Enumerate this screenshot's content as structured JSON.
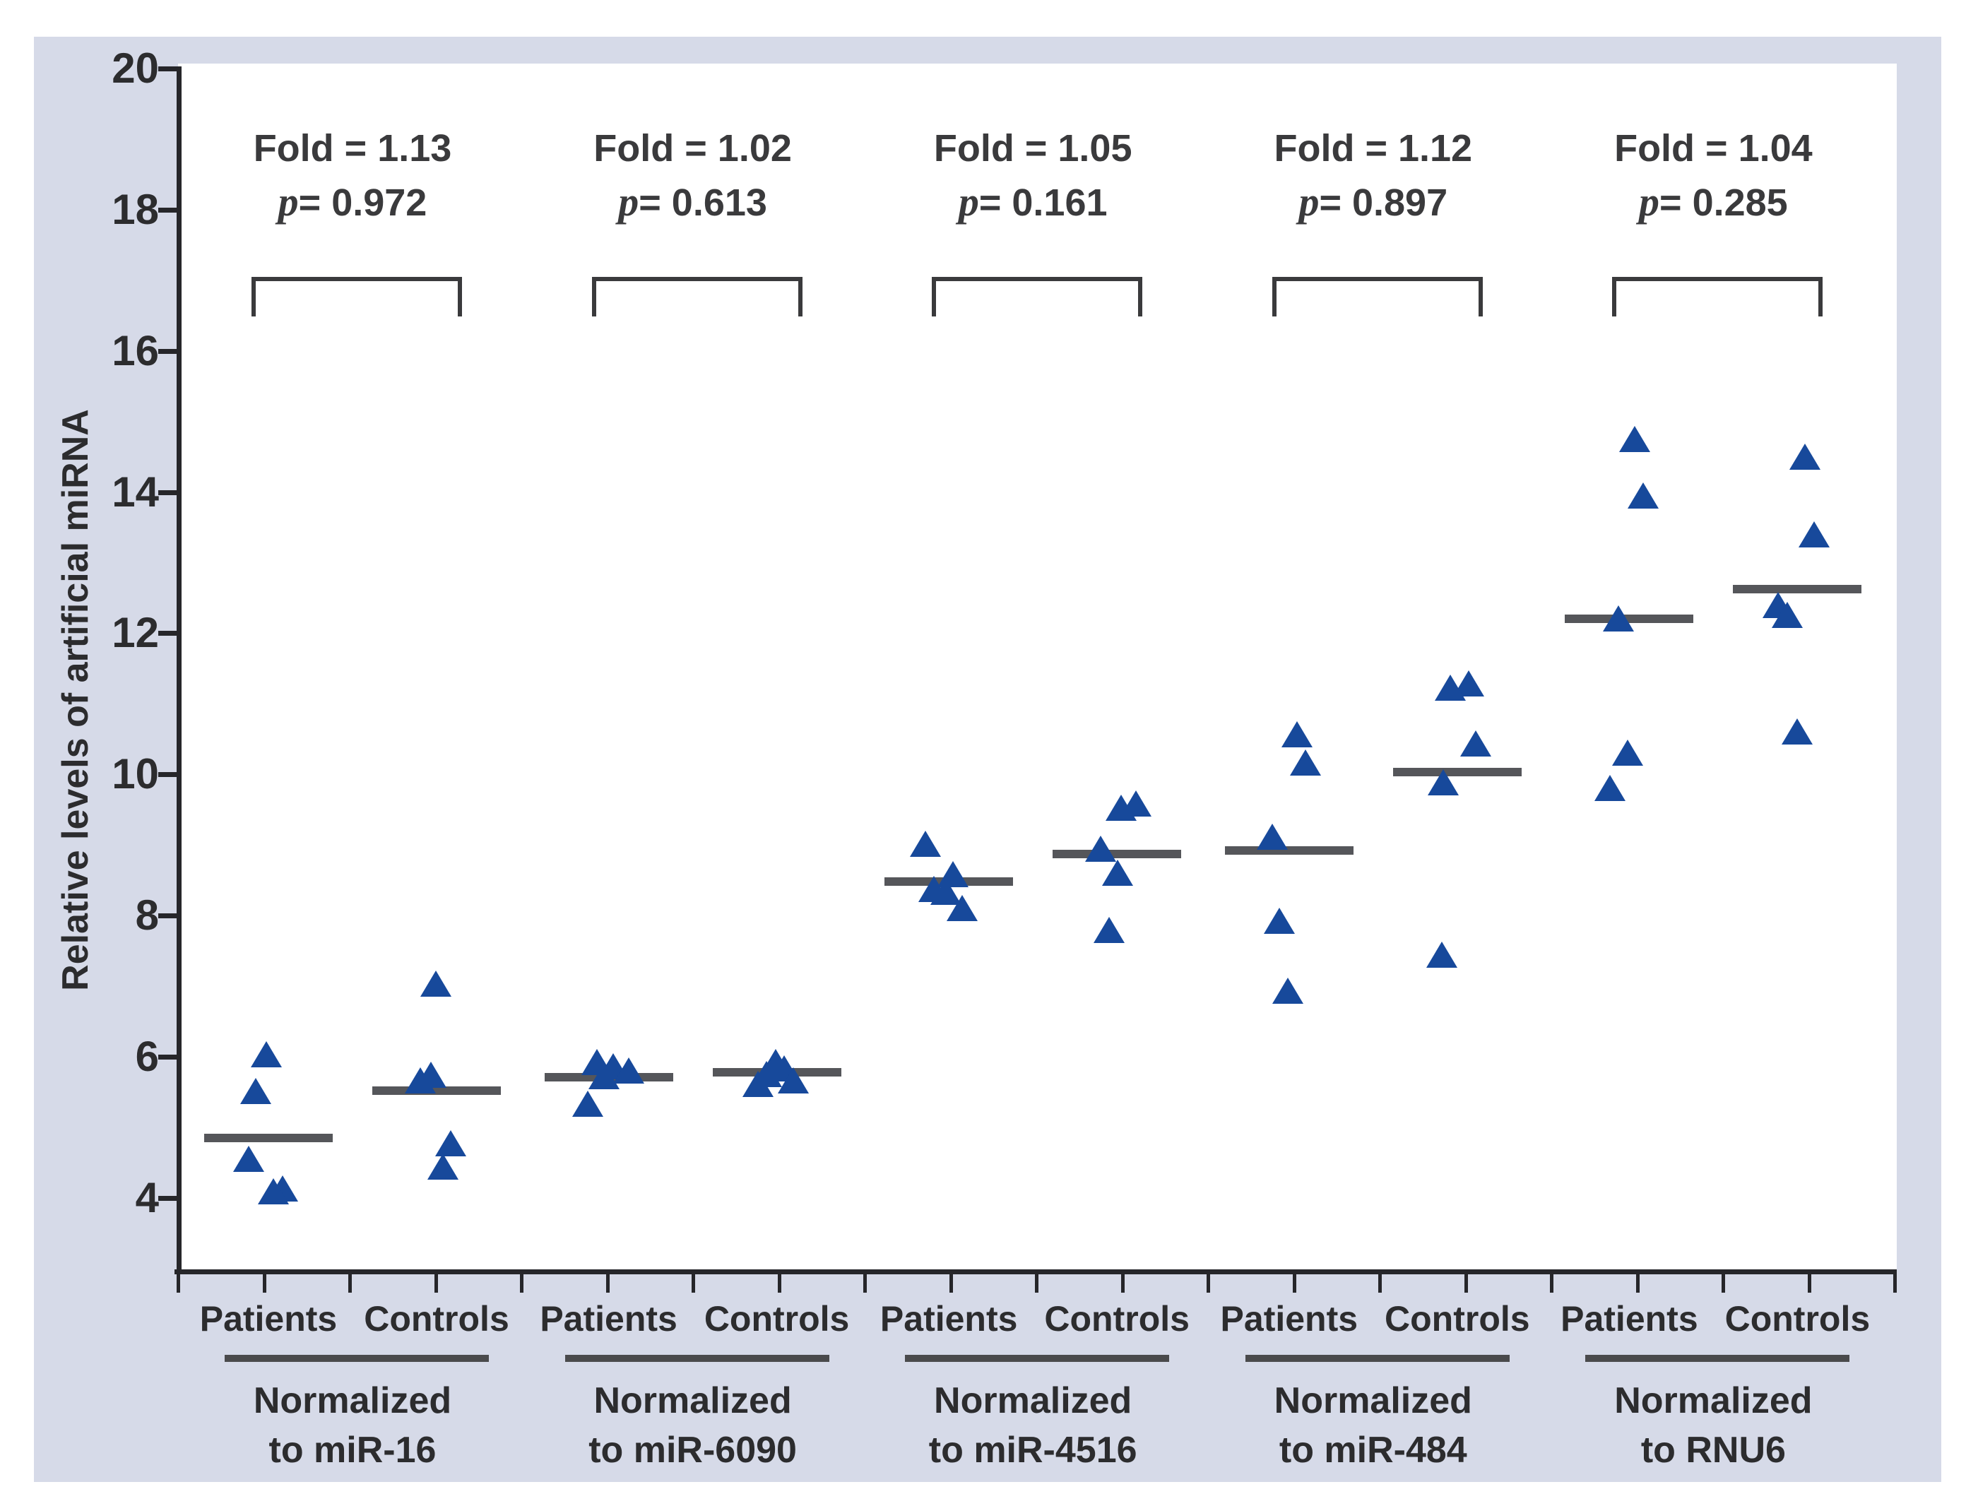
{
  "chart_data": {
    "type": "scatter",
    "title": "",
    "ylabel": "Relative levels of artificial miRNA",
    "xlabel": "",
    "ylim": [
      3,
      20
    ],
    "yticks": [
      4,
      6,
      8,
      10,
      12,
      14,
      16,
      18,
      20
    ],
    "grid": false,
    "legend": "none",
    "marker": "triangle-up",
    "marker_color": "#17499b",
    "mean_line_color": "#55565a",
    "series_labels": [
      "Patients",
      "Controls"
    ],
    "groups": [
      {
        "normalizer": "miR-16",
        "caption_line1": "Normalized",
        "caption_line2": "to miR-16",
        "fold_label": "Fold = 1.13",
        "p_char": "p",
        "p_rest": "= 0.972",
        "series": [
          {
            "label": "Patients",
            "mean": 4.85,
            "values": [
              6.03,
              5.51,
              4.55,
              4.13,
              4.09
            ],
            "jitter": [
              -3,
              -18,
              -28,
              20,
              7
            ]
          },
          {
            "label": "Controls",
            "mean": 5.52,
            "values": [
              7.03,
              5.74,
              5.66,
              4.77,
              4.44
            ],
            "jitter": [
              -1,
              -8,
              -23,
              20,
              9
            ]
          }
        ]
      },
      {
        "normalizer": "miR-6090",
        "caption_line1": "Normalized",
        "caption_line2": "to miR-6090",
        "fold_label": "Fold = 1.02",
        "p_char": "p",
        "p_rest": "= 0.613",
        "series": [
          {
            "label": "Patients",
            "mean": 5.71,
            "values": [
              5.92,
              5.86,
              5.8,
              5.72,
              5.33
            ],
            "jitter": [
              -17,
              6,
              28,
              -7,
              -30
            ]
          },
          {
            "label": "Controls",
            "mean": 5.78,
            "values": [
              5.92,
              5.83,
              5.75,
              5.66,
              5.61
            ],
            "jitter": [
              -2,
              10,
              -15,
              23,
              -27
            ]
          }
        ]
      },
      {
        "normalizer": "miR-4516",
        "caption_line1": "Normalized",
        "caption_line2": "to miR-4516",
        "fold_label": "Fold = 1.05",
        "p_char": "p",
        "p_rest": "= 0.161",
        "series": [
          {
            "label": "Patients",
            "mean": 8.48,
            "values": [
              9.01,
              8.58,
              8.37,
              8.33,
              8.1
            ],
            "jitter": [
              -33,
              6,
              -21,
              -4,
              19
            ]
          },
          {
            "label": "Controls",
            "mean": 8.87,
            "values": [
              9.58,
              9.52,
              8.94,
              8.6,
              7.79
            ],
            "jitter": [
              27,
              6,
              -23,
              1,
              -11
            ]
          }
        ]
      },
      {
        "normalizer": "miR-484",
        "caption_line1": "Normalized",
        "caption_line2": "to miR-484",
        "fold_label": "Fold = 1.12",
        "p_char": "p",
        "p_rest": "= 0.897",
        "series": [
          {
            "label": "Patients",
            "mean": 8.92,
            "values": [
              10.56,
              10.16,
              9.11,
              7.92,
              6.93
            ],
            "jitter": [
              11,
              23,
              -24,
              -14,
              -2
            ]
          },
          {
            "label": "Controls",
            "mean": 10.03,
            "values": [
              11.28,
              11.22,
              10.43,
              9.88,
              7.44
            ],
            "jitter": [
              16,
              -10,
              26,
              -20,
              -22
            ]
          }
        ]
      },
      {
        "normalizer": "RNU6",
        "caption_line1": "Normalized",
        "caption_line2": "to RNU6",
        "fold_label": "Fold = 1.04",
        "p_char": "p",
        "p_rest": "= 0.285",
        "series": [
          {
            "label": "Patients",
            "mean": 12.2,
            "values": [
              14.75,
              13.95,
              12.2,
              10.3,
              9.8
            ],
            "jitter": [
              8,
              20,
              -15,
              -2,
              -27
            ]
          },
          {
            "label": "Controls",
            "mean": 12.63,
            "values": [
              14.5,
              13.4,
              12.4,
              12.25,
              10.6
            ],
            "jitter": [
              11,
              24,
              -27,
              -14,
              0
            ]
          }
        ]
      }
    ]
  },
  "style": {
    "panel_bg": "#d6dae8",
    "plot_bg": "#ffffff",
    "axis_color": "#26262a",
    "text_color": "#2c2c2e",
    "marker_color": "#17499b",
    "mean_line_color": "#55565a"
  }
}
